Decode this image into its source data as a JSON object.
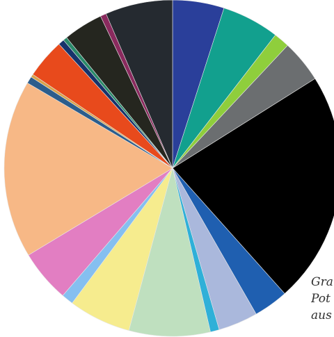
{
  "caption": {
    "line1": "Gra",
    "line2": "Pot",
    "line3": "aus"
  },
  "chart_data": {
    "type": "pie",
    "title": "",
    "start_angle_deg": 0,
    "direction": "clockwise",
    "slices": [
      {
        "value": 5.2,
        "color": "#2a3f9a"
      },
      {
        "value": 5.8,
        "color": "#12a08e"
      },
      {
        "value": 1.6,
        "color": "#8fce3c"
      },
      {
        "value": 4.3,
        "color": "#6b6e70"
      },
      {
        "value": 23.5,
        "color": "#000000"
      },
      {
        "value": 3.5,
        "color": "#1f5fb0"
      },
      {
        "value": 4.0,
        "color": "#aab8dc"
      },
      {
        "value": 0.9,
        "color": "#2fb0d8"
      },
      {
        "value": 8.2,
        "color": "#bfe0bf"
      },
      {
        "value": 6.3,
        "color": "#f6ec8e"
      },
      {
        "value": 1.2,
        "color": "#85bff0"
      },
      {
        "value": 5.3,
        "color": "#e27ec2"
      },
      {
        "value": 18.0,
        "color": "#f7b886"
      },
      {
        "value": 0.7,
        "color": "#2c5d8c"
      },
      {
        "value": 0.3,
        "color": "#d9a24a"
      },
      {
        "value": 4.0,
        "color": "#e84a1c"
      },
      {
        "value": 0.6,
        "color": "#17336b"
      },
      {
        "value": 0.4,
        "color": "#2a8a6a"
      },
      {
        "value": 4.0,
        "color": "#25261f"
      },
      {
        "value": 0.6,
        "color": "#8a2a5e"
      },
      {
        "value": 6.8,
        "color": "#252a30"
      }
    ]
  }
}
